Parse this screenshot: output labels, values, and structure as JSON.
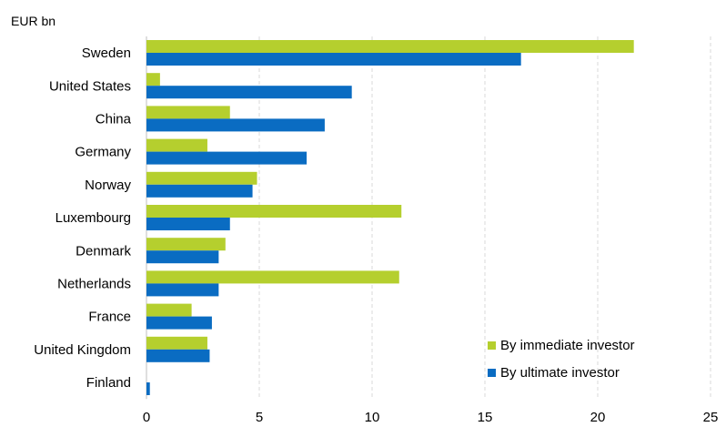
{
  "chart_data": {
    "type": "bar",
    "orientation": "horizontal",
    "unit_label": "EUR bn",
    "categories": [
      "Sweden",
      "United States",
      "China",
      "Germany",
      "Norway",
      "Luxembourg",
      "Denmark",
      "Netherlands",
      "France",
      "United Kingdom",
      "Finland"
    ],
    "series": [
      {
        "name": "By immediate investor",
        "color": "#b5cf2e",
        "values": [
          21.6,
          0.6,
          3.7,
          2.7,
          4.9,
          11.3,
          3.5,
          11.2,
          2.0,
          2.7,
          0.0
        ]
      },
      {
        "name": "By ultimate investor",
        "color": "#0a6cc2",
        "values": [
          16.6,
          9.1,
          7.9,
          7.1,
          4.7,
          3.7,
          3.2,
          3.2,
          2.9,
          2.8,
          0.15
        ]
      }
    ],
    "xlim": [
      0,
      25
    ],
    "xticks": [
      "0",
      "5",
      "10",
      "15",
      "20",
      "25"
    ],
    "grid": "vertical dashed",
    "legend_position": "bottom-right"
  }
}
